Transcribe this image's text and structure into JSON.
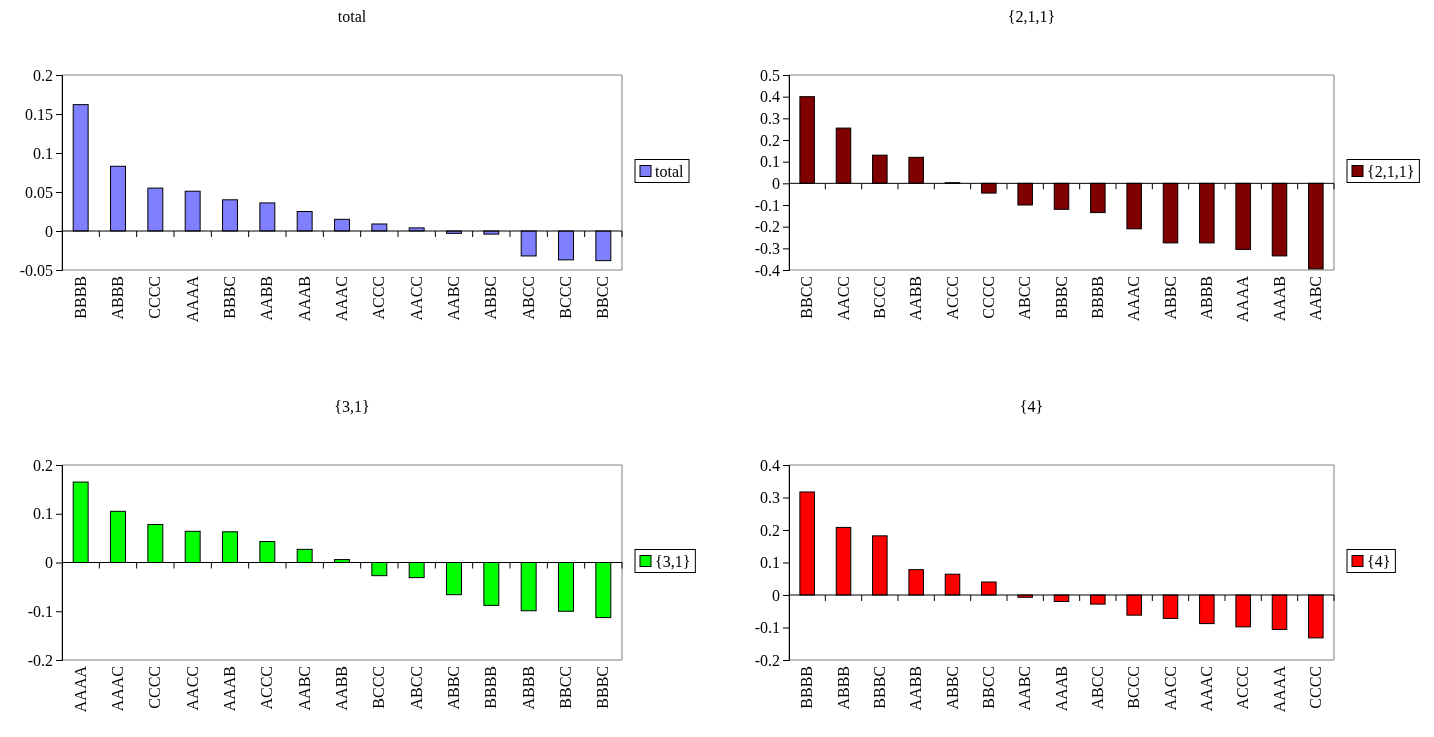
{
  "chart_data": [
    {
      "type": "bar",
      "title": "total",
      "categories": [
        "BBBB",
        "ABBB",
        "CCCC",
        "AAAA",
        "BBBC",
        "AABB",
        "AAAB",
        "AAAC",
        "ACCC",
        "AACC",
        "AABC",
        "ABBC",
        "ABCC",
        "BCCC",
        "BBCC"
      ],
      "series": [
        {
          "name": "total",
          "color": "#8080ff",
          "values": [
            0.162,
            0.083,
            0.055,
            0.051,
            0.04,
            0.036,
            0.025,
            0.015,
            0.009,
            0.004,
            -0.003,
            -0.004,
            -0.032,
            -0.037,
            -0.038
          ]
        }
      ],
      "ylim": [
        -0.05,
        0.2
      ],
      "yticks": [
        -0.05,
        0,
        0.05,
        0.1,
        0.15,
        0.2
      ],
      "legend": "right"
    },
    {
      "type": "bar",
      "title": "{2,1,1}",
      "categories": [
        "BBCC",
        "AACC",
        "BCCC",
        "AABB",
        "ACCC",
        "CCCC",
        "ABCC",
        "BBBC",
        "BBBB",
        "AAAC",
        "ABBC",
        "ABBB",
        "AAAA",
        "AAAB",
        "AABC"
      ],
      "series": [
        {
          "name": "{2,1,1}",
          "color": "#800000",
          "values": [
            0.4,
            0.255,
            0.13,
            0.12,
            0.003,
            -0.045,
            -0.1,
            -0.12,
            -0.135,
            -0.21,
            -0.275,
            -0.275,
            -0.305,
            -0.335,
            -0.395
          ]
        }
      ],
      "ylim": [
        -0.4,
        0.5
      ],
      "yticks": [
        -0.4,
        -0.3,
        -0.2,
        -0.1,
        0,
        0.1,
        0.2,
        0.3,
        0.4,
        0.5
      ],
      "legend": "right"
    },
    {
      "type": "bar",
      "title": "{3,1}",
      "categories": [
        "AAAA",
        "AAAC",
        "CCCC",
        "AACC",
        "AAAB",
        "ACCC",
        "AABC",
        "AABB",
        "BCCC",
        "ABCC",
        "ABBC",
        "BBBB",
        "ABBB",
        "BBCC",
        "BBBC"
      ],
      "series": [
        {
          "name": "{3,1}",
          "color": "#00ff00",
          "values": [
            0.165,
            0.105,
            0.078,
            0.064,
            0.063,
            0.043,
            0.027,
            0.006,
            -0.027,
            -0.031,
            -0.066,
            -0.088,
            -0.099,
            -0.1,
            -0.113
          ]
        }
      ],
      "ylim": [
        -0.2,
        0.2
      ],
      "yticks": [
        -0.2,
        -0.1,
        0,
        0.1,
        0.2
      ],
      "legend": "right"
    },
    {
      "type": "bar",
      "title": "{4}",
      "categories": [
        "BBBB",
        "ABBB",
        "BBBC",
        "AABB",
        "ABBC",
        "BBCC",
        "AABC",
        "AAAB",
        "ABCC",
        "BCCC",
        "AACC",
        "AAAC",
        "ACCC",
        "AAAA",
        "CCCC"
      ],
      "series": [
        {
          "name": "{4}",
          "color": "#ff0000",
          "values": [
            0.317,
            0.208,
            0.182,
            0.078,
            0.064,
            0.04,
            -0.007,
            -0.02,
            -0.028,
            -0.062,
            -0.072,
            -0.088,
            -0.098,
            -0.106,
            -0.132
          ]
        }
      ],
      "ylim": [
        -0.2,
        0.4
      ],
      "yticks": [
        -0.2,
        -0.1,
        0,
        0.1,
        0.2,
        0.3,
        0.4
      ],
      "legend": "right"
    }
  ]
}
